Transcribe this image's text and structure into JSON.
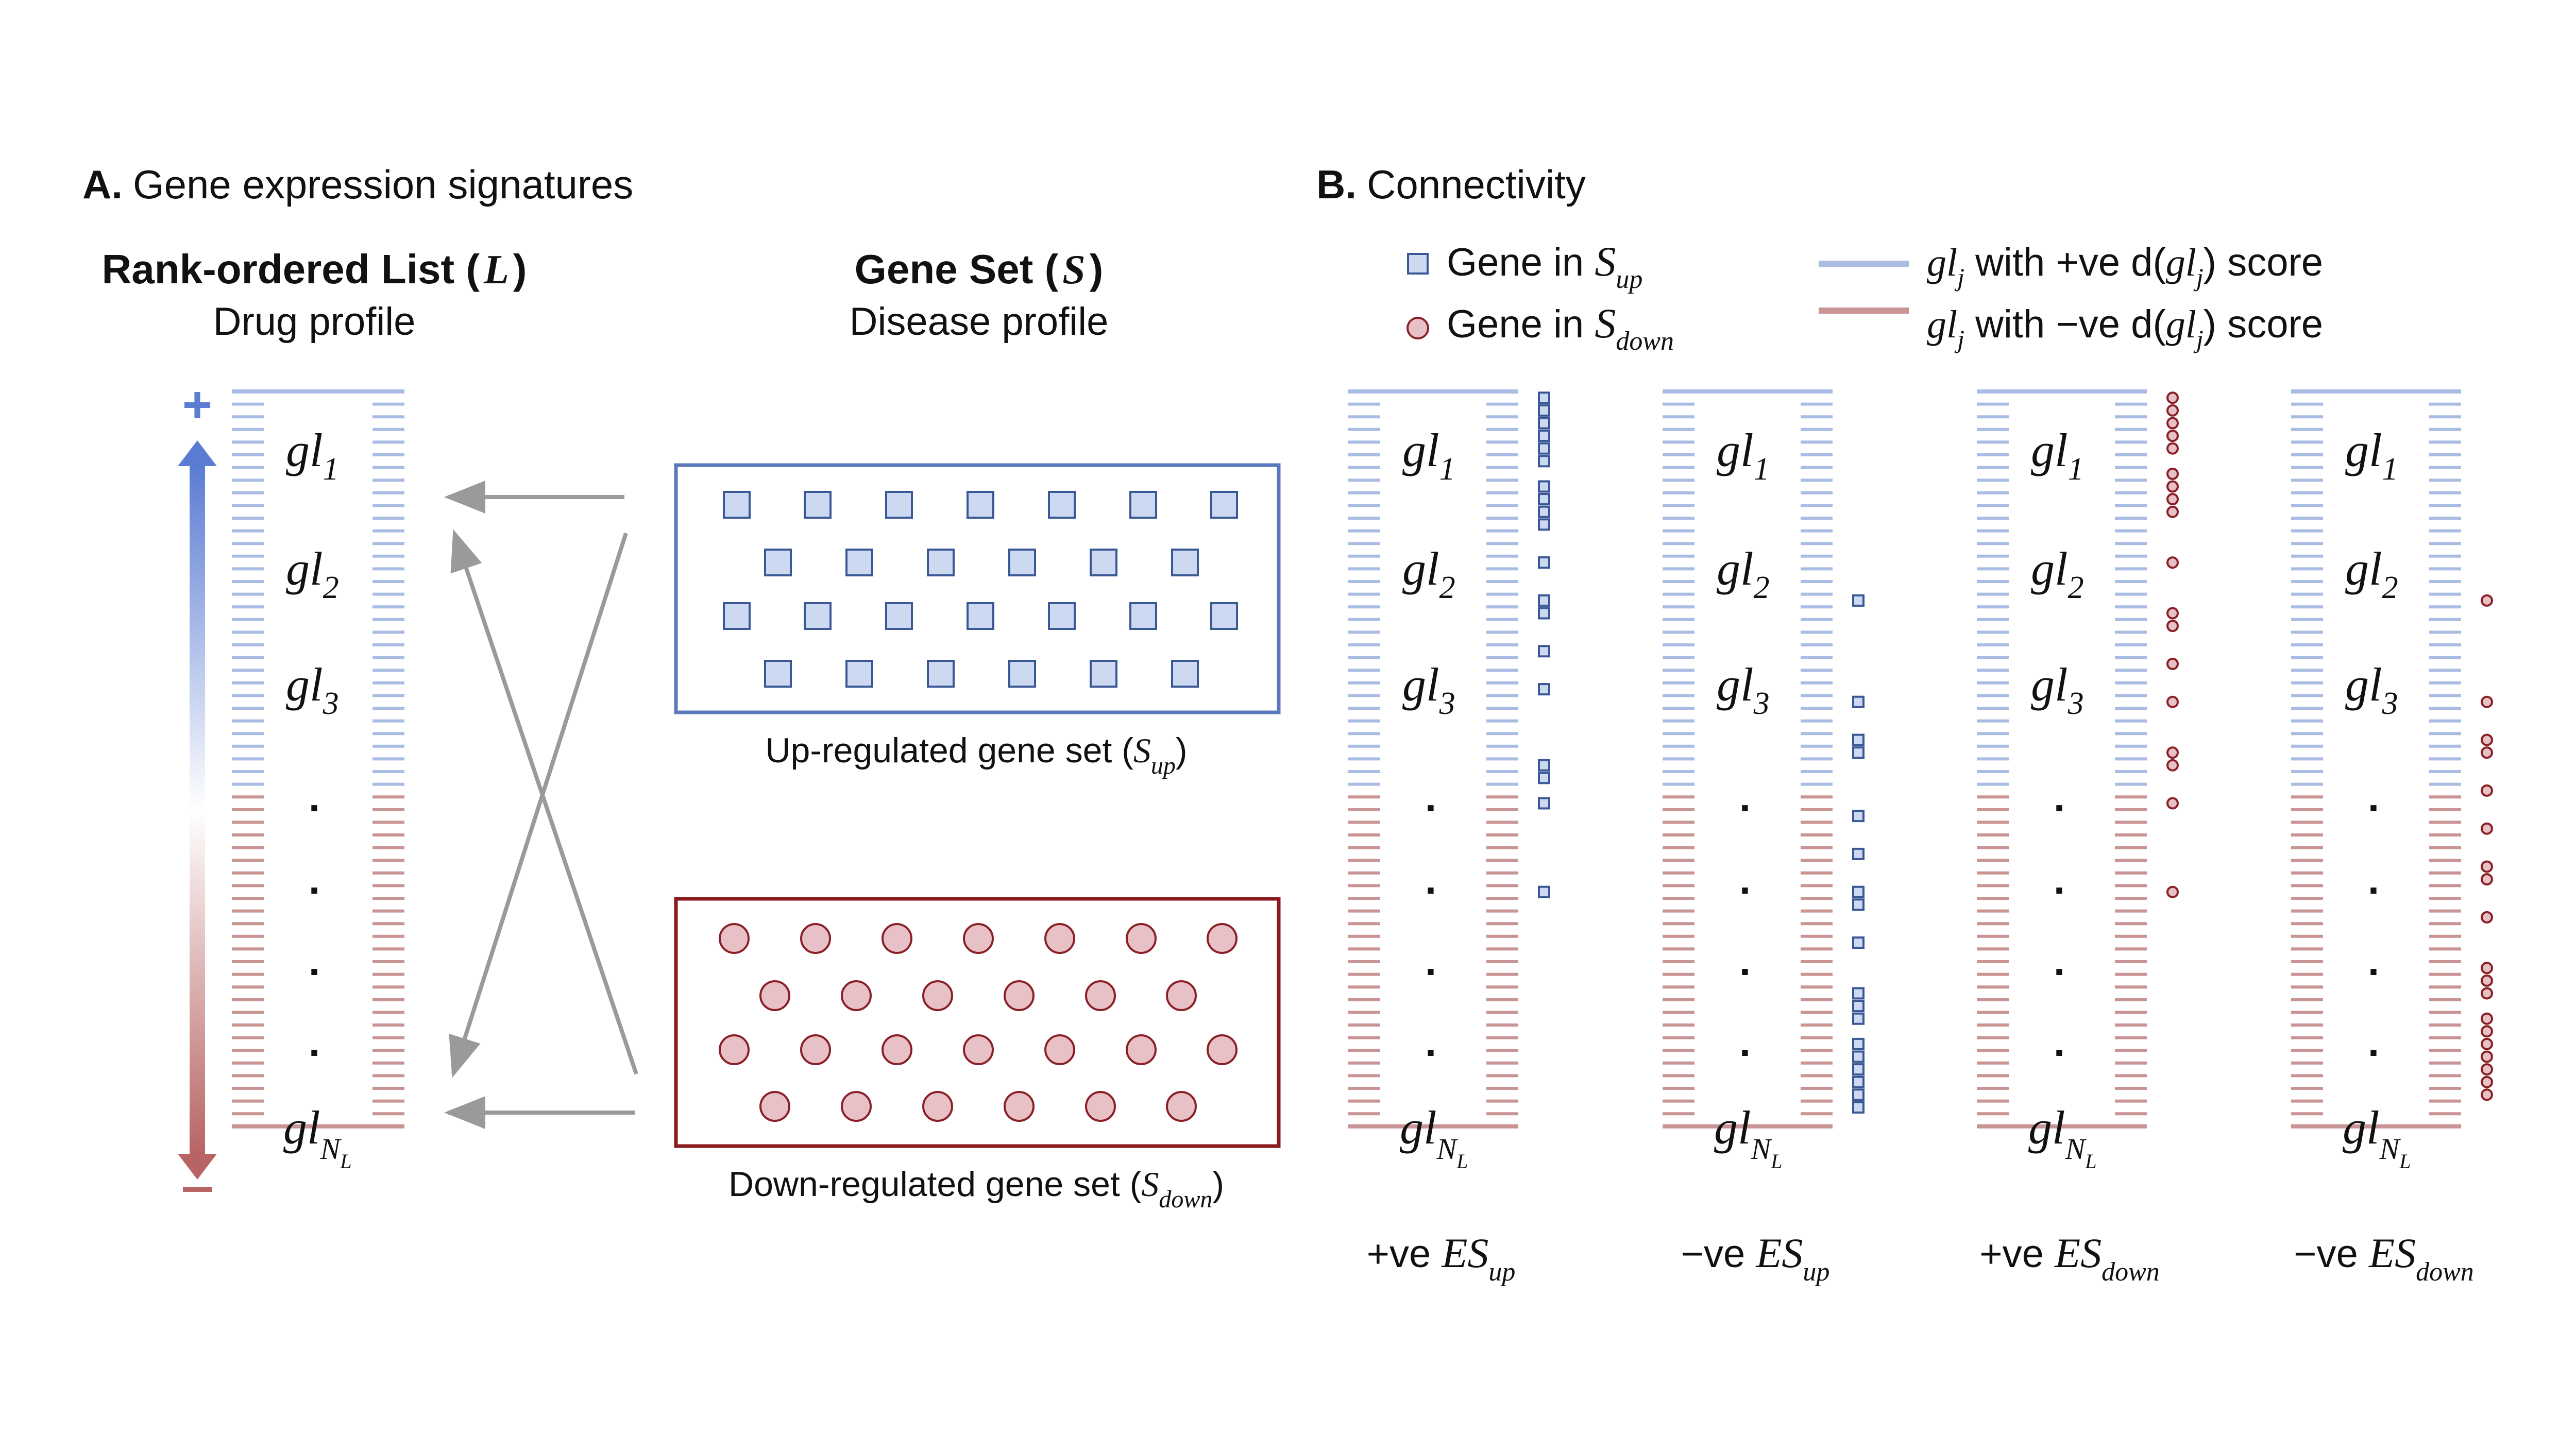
{
  "panel_a": {
    "letter": "A.",
    "title": "Gene expression signatures",
    "list_heading": "Rank-ordered List (",
    "list_symbol": "L",
    "list_close": ")",
    "list_sub": "Drug profile",
    "set_heading": "Gene Set (",
    "set_symbol": "S",
    "set_close": ")",
    "set_sub": "Disease profile",
    "plus": "+",
    "minus": "−",
    "items": [
      {
        "base": "gl",
        "sub": "1"
      },
      {
        "base": "gl",
        "sub": "2"
      },
      {
        "base": "gl",
        "sub": "3"
      },
      {
        "base": "gl",
        "sub": "N",
        "subsub": "L"
      }
    ],
    "dot": ".",
    "up_caption": "Up-regulated gene set (",
    "up_symbol": "S",
    "up_sub": "up",
    "up_close": ")",
    "down_caption": "Down-regulated gene set (",
    "down_symbol": "S",
    "down_sub": "down",
    "down_close": ")"
  },
  "panel_b": {
    "letter": "B.",
    "title": "Connectivity",
    "legend": {
      "up_text": "Gene in ",
      "up_symbol": "S",
      "up_sub": "up",
      "down_text": "Gene in ",
      "down_symbol": "S",
      "down_sub": "down",
      "pos_gl": "gl",
      "pos_gl_sub": "j",
      "pos_mid": " with +ve d(",
      "pos_gl2": "gl",
      "pos_gl2_sub": "j",
      "pos_end": ") score",
      "neg_gl": "gl",
      "neg_gl_sub": "j",
      "neg_mid": " with −ve d(",
      "neg_gl2": "gl",
      "neg_gl2_sub": "j",
      "neg_end": ") score"
    },
    "columns": [
      {
        "sign": "+ve ",
        "symbol": "ES",
        "sub": "up",
        "marker": "square",
        "ranks": [
          0,
          1,
          2,
          3,
          4,
          5,
          7,
          8,
          9,
          10,
          13,
          16,
          17,
          20,
          23,
          29,
          30,
          32,
          39
        ]
      },
      {
        "sign": "−ve ",
        "symbol": "ES",
        "sub": "up",
        "marker": "square",
        "ranks": [
          16,
          24,
          27,
          28,
          33,
          36,
          39,
          40,
          43,
          47,
          48,
          49,
          51,
          52,
          53,
          54,
          55,
          56
        ]
      },
      {
        "sign": "+ve ",
        "symbol": "ES",
        "sub": "down",
        "marker": "circle",
        "ranks": [
          0,
          1,
          2,
          3,
          4,
          6,
          7,
          8,
          9,
          13,
          17,
          18,
          21,
          24,
          28,
          29,
          32,
          39
        ]
      },
      {
        "sign": "−ve ",
        "symbol": "ES",
        "sub": "down",
        "marker": "circle",
        "ranks": [
          16,
          24,
          27,
          28,
          31,
          34,
          37,
          38,
          41,
          45,
          46,
          47,
          49,
          50,
          51,
          52,
          53,
          54,
          55
        ]
      }
    ]
  },
  "colors": {
    "blue_line": "#a9bde4",
    "red_line": "#c99494",
    "square_fill": "#ccd9f1",
    "square_stroke": "#3a5796",
    "circle_fill": "#e7c1c5",
    "circle_stroke": "#8a1f27",
    "box_blue": "#5a79bb",
    "box_red": "#8a1a1d",
    "arrow_grey": "#9a9a9a",
    "grad_top": "#5b7cd3",
    "grad_bottom": "#b86464"
  }
}
